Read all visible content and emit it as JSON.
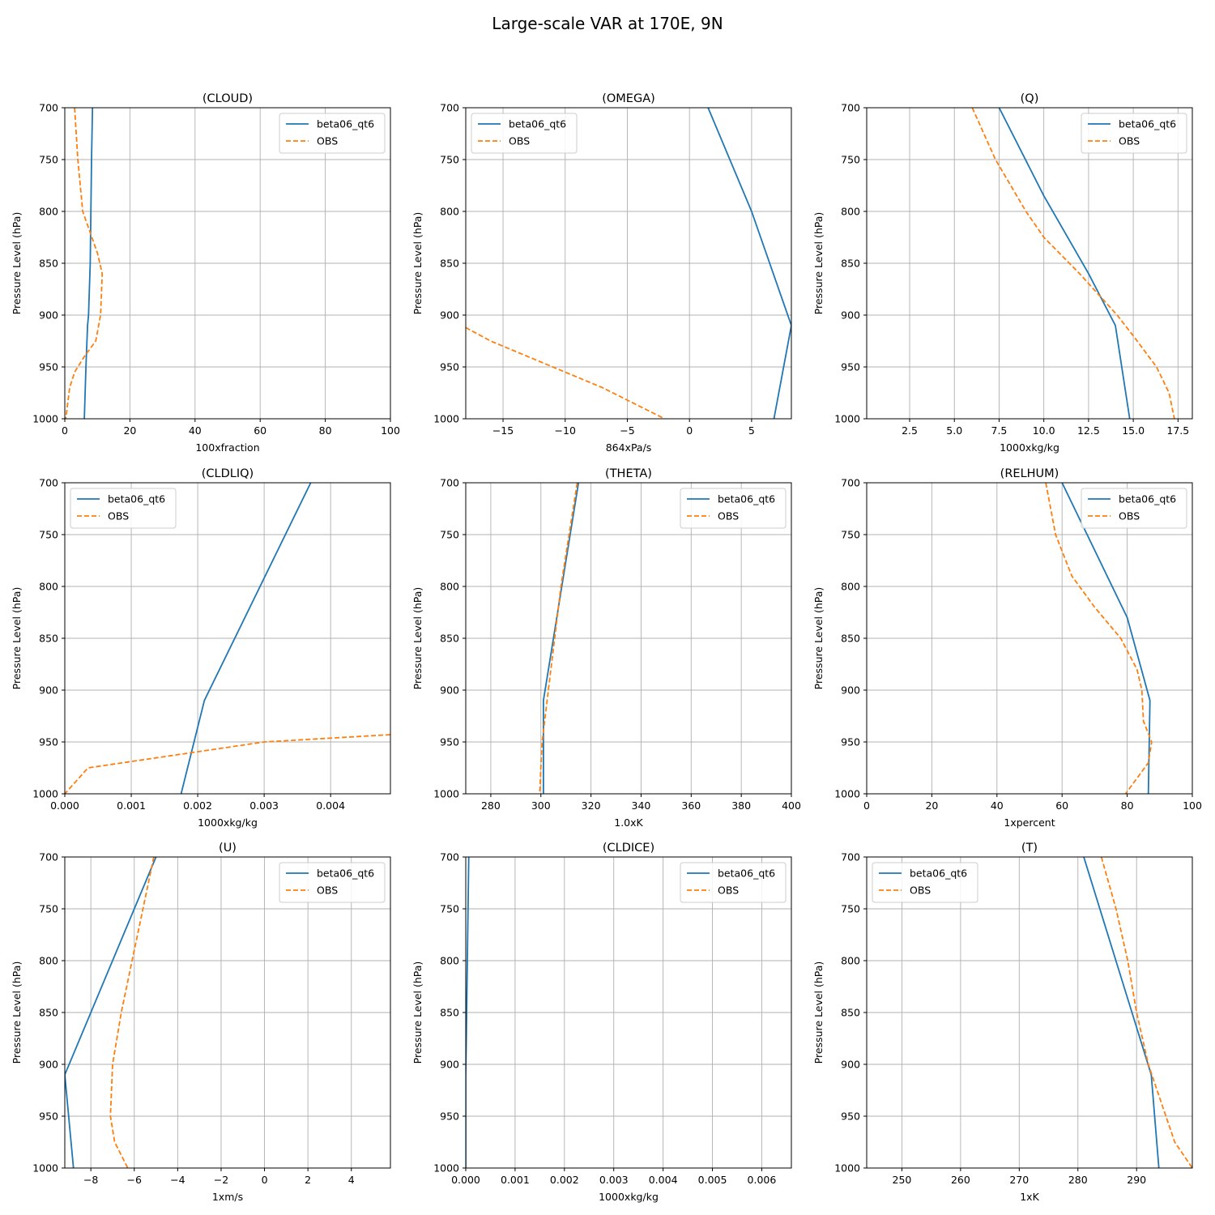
{
  "figure": {
    "title": "Large-scale VAR at 170E, 9N",
    "colors": {
      "model": "#1f77b4",
      "obs": "#ff7f0e",
      "grid": "#b0b0b0"
    }
  },
  "chart_data": [
    {
      "type": "line",
      "title": "(CLOUD)",
      "xlabel": "100xfraction",
      "ylabel": "Pressure Level (hPa)",
      "xlim": [
        0,
        100
      ],
      "ylim": [
        1000,
        700
      ],
      "xticks": [
        0,
        20,
        40,
        60,
        80,
        100
      ],
      "yticks": [
        700,
        750,
        800,
        850,
        900,
        950,
        1000
      ],
      "grid": true,
      "legend": "upper right",
      "series": [
        {
          "name": "beta06_qt6",
          "style": "solid",
          "points": [
            [
              8.5,
              700
            ],
            [
              8.2,
              750
            ],
            [
              8,
              800
            ],
            [
              7.8,
              850
            ],
            [
              7.3,
              900
            ],
            [
              7,
              910
            ],
            [
              6.5,
              950
            ],
            [
              6,
              1000
            ]
          ]
        },
        {
          "name": "OBS",
          "style": "dashed",
          "points": [
            [
              3,
              700
            ],
            [
              4,
              750
            ],
            [
              5.5,
              800
            ],
            [
              10,
              840
            ],
            [
              11.5,
              860
            ],
            [
              11,
              900
            ],
            [
              9.5,
              925
            ],
            [
              6,
              940
            ],
            [
              3,
              955
            ],
            [
              1.5,
              970
            ],
            [
              0.3,
              1000
            ]
          ]
        }
      ]
    },
    {
      "type": "line",
      "title": "(OMEGA)",
      "xlabel": "864xPa/s",
      "ylabel": "Pressure Level (hPa)",
      "xlim": [
        -18,
        8.2
      ],
      "ylim": [
        1000,
        700
      ],
      "xticks": [
        -15,
        -10,
        -5,
        0,
        5
      ],
      "yticks": [
        700,
        750,
        800,
        850,
        900,
        950,
        1000
      ],
      "grid": true,
      "legend": "upper left",
      "series": [
        {
          "name": "beta06_qt6",
          "style": "solid",
          "points": [
            [
              1.5,
              700
            ],
            [
              5,
              800
            ],
            [
              8.2,
              910
            ],
            [
              6.8,
              1000
            ]
          ]
        },
        {
          "name": "OBS",
          "style": "dashed",
          "points": [
            [
              -18,
              912
            ],
            [
              -16,
              925
            ],
            [
              -13,
              940
            ],
            [
              -10,
              955
            ],
            [
              -7,
              970
            ],
            [
              -4.5,
              985
            ],
            [
              -2,
              1000
            ]
          ]
        }
      ]
    },
    {
      "type": "line",
      "title": "(Q)",
      "xlabel": "1000xkg/kg",
      "ylabel": "Pressure Level (hPa)",
      "xlim": [
        0.1,
        18.3
      ],
      "ylim": [
        1000,
        700
      ],
      "xticks": [
        2.5,
        5.0,
        7.5,
        10.0,
        12.5,
        15.0,
        17.5
      ],
      "yticks": [
        700,
        750,
        800,
        850,
        900,
        950,
        1000
      ],
      "grid": true,
      "legend": "upper right",
      "series": [
        {
          "name": "beta06_qt6",
          "style": "solid",
          "points": [
            [
              7.5,
              700
            ],
            [
              10,
              785
            ],
            [
              12.5,
              860
            ],
            [
              14,
              910
            ],
            [
              14.8,
              1000
            ]
          ]
        },
        {
          "name": "OBS",
          "style": "dashed",
          "points": [
            [
              6,
              700
            ],
            [
              7.3,
              750
            ],
            [
              9,
              800
            ],
            [
              10,
              825
            ],
            [
              12,
              860
            ],
            [
              14.1,
              900
            ],
            [
              15,
              920
            ],
            [
              16.3,
              950
            ],
            [
              17,
              975
            ],
            [
              17.3,
              1000
            ]
          ]
        }
      ]
    },
    {
      "type": "line",
      "title": "(CLDLIQ)",
      "xlabel": "1000xkg/kg",
      "ylabel": "Pressure Level (hPa)",
      "xlim": [
        0,
        0.0049
      ],
      "ylim": [
        1000,
        700
      ],
      "xticks": [
        0.0,
        0.001,
        0.002,
        0.003,
        0.004
      ],
      "yticks": [
        700,
        750,
        800,
        850,
        900,
        950,
        1000
      ],
      "grid": true,
      "legend": "upper left",
      "series": [
        {
          "name": "beta06_qt6",
          "style": "solid",
          "points": [
            [
              0.0037,
              700
            ],
            [
              0.0021,
              910
            ],
            [
              0.00175,
              1000
            ]
          ]
        },
        {
          "name": "OBS",
          "style": "dashed",
          "points": [
            [
              0.0049,
              943
            ],
            [
              0.003,
              950
            ],
            [
              0.00035,
              975
            ],
            [
              0,
              1000
            ]
          ]
        }
      ]
    },
    {
      "type": "line",
      "title": "(THETA)",
      "xlabel": "1.0xK",
      "ylabel": "Pressure Level (hPa)",
      "xlim": [
        270,
        400
      ],
      "ylim": [
        1000,
        700
      ],
      "xticks": [
        280,
        300,
        320,
        340,
        360,
        380,
        400
      ],
      "yticks": [
        700,
        750,
        800,
        850,
        900,
        950,
        1000
      ],
      "grid": true,
      "legend": "upper right",
      "series": [
        {
          "name": "beta06_qt6",
          "style": "solid",
          "points": [
            [
              315,
              700
            ],
            [
              301,
              910
            ],
            [
              301,
              1000
            ]
          ]
        },
        {
          "name": "OBS",
          "style": "dashed",
          "points": [
            [
              314.5,
              700
            ],
            [
              308,
              800
            ],
            [
              303,
              900
            ],
            [
              300.5,
              950
            ],
            [
              299.5,
              1000
            ]
          ]
        }
      ]
    },
    {
      "type": "line",
      "title": "(RELHUM)",
      "xlabel": "1xpercent",
      "ylabel": "Pressure Level (hPa)",
      "xlim": [
        0,
        100
      ],
      "ylim": [
        1000,
        700
      ],
      "xticks": [
        0,
        20,
        40,
        60,
        80,
        100
      ],
      "yticks": [
        700,
        750,
        800,
        850,
        900,
        950,
        1000
      ],
      "grid": true,
      "legend": "upper right",
      "series": [
        {
          "name": "beta06_qt6",
          "style": "solid",
          "points": [
            [
              60,
              700
            ],
            [
              80,
              830
            ],
            [
              87,
              910
            ],
            [
              86.5,
              1000
            ]
          ]
        },
        {
          "name": "OBS",
          "style": "dashed",
          "points": [
            [
              55,
              700
            ],
            [
              58,
              750
            ],
            [
              63,
              790
            ],
            [
              70,
              820
            ],
            [
              78,
              850
            ],
            [
              83,
              880
            ],
            [
              84.5,
              900
            ],
            [
              85,
              930
            ],
            [
              87.5,
              950
            ],
            [
              86.5,
              970
            ],
            [
              79.5,
              1000
            ]
          ]
        }
      ]
    },
    {
      "type": "line",
      "title": "(U)",
      "xlabel": "1xm/s",
      "ylabel": "Pressure Level (hPa)",
      "xlim": [
        -9.2,
        5.8
      ],
      "ylim": [
        1000,
        700
      ],
      "xticks": [
        -8,
        -6,
        -4,
        -2,
        0,
        2,
        4
      ],
      "yticks": [
        700,
        750,
        800,
        850,
        900,
        950,
        1000
      ],
      "grid": true,
      "legend": "upper right",
      "series": [
        {
          "name": "beta06_qt6",
          "style": "solid",
          "points": [
            [
              -5,
              700
            ],
            [
              -9.2,
              910
            ],
            [
              -8.8,
              1000
            ]
          ]
        },
        {
          "name": "OBS",
          "style": "dashed",
          "points": [
            [
              -5.1,
              700
            ],
            [
              -5.6,
              750
            ],
            [
              -6.1,
              800
            ],
            [
              -6.6,
              850
            ],
            [
              -7,
              900
            ],
            [
              -7.1,
              950
            ],
            [
              -6.9,
              975
            ],
            [
              -6.3,
              1000
            ]
          ]
        }
      ]
    },
    {
      "type": "line",
      "title": "(CLDICE)",
      "xlabel": "1000xkg/kg",
      "ylabel": "Pressure Level (hPa)",
      "xlim": [
        0,
        0.0066
      ],
      "ylim": [
        1000,
        700
      ],
      "xticks": [
        0.0,
        0.001,
        0.002,
        0.003,
        0.004,
        0.005,
        0.006
      ],
      "yticks": [
        700,
        750,
        800,
        850,
        900,
        950,
        1000
      ],
      "grid": true,
      "legend": "upper right",
      "series": [
        {
          "name": "beta06_qt6",
          "style": "solid",
          "points": [
            [
              6e-05,
              700
            ],
            [
              1e-05,
              880
            ],
            [
              0,
              910
            ],
            [
              0,
              1000
            ]
          ]
        },
        {
          "name": "OBS",
          "style": "dashed",
          "points": []
        }
      ]
    },
    {
      "type": "line",
      "title": "(T)",
      "xlabel": "1xK",
      "ylabel": "Pressure Level (hPa)",
      "xlim": [
        244,
        299.5
      ],
      "ylim": [
        1000,
        700
      ],
      "xticks": [
        250,
        260,
        270,
        280,
        290
      ],
      "yticks": [
        700,
        750,
        800,
        850,
        900,
        950,
        1000
      ],
      "grid": true,
      "legend": "upper left",
      "series": [
        {
          "name": "beta06_qt6",
          "style": "solid",
          "points": [
            [
              281,
              700
            ],
            [
              292.5,
              910
            ],
            [
              293.8,
              1000
            ]
          ]
        },
        {
          "name": "OBS",
          "style": "dashed",
          "points": [
            [
              284,
              700
            ],
            [
              286.5,
              750
            ],
            [
              288.5,
              800
            ],
            [
              290,
              850
            ],
            [
              292,
              900
            ],
            [
              293.5,
              925
            ],
            [
              295,
              950
            ],
            [
              296.5,
              975
            ],
            [
              299.5,
              1000
            ]
          ]
        }
      ]
    }
  ]
}
